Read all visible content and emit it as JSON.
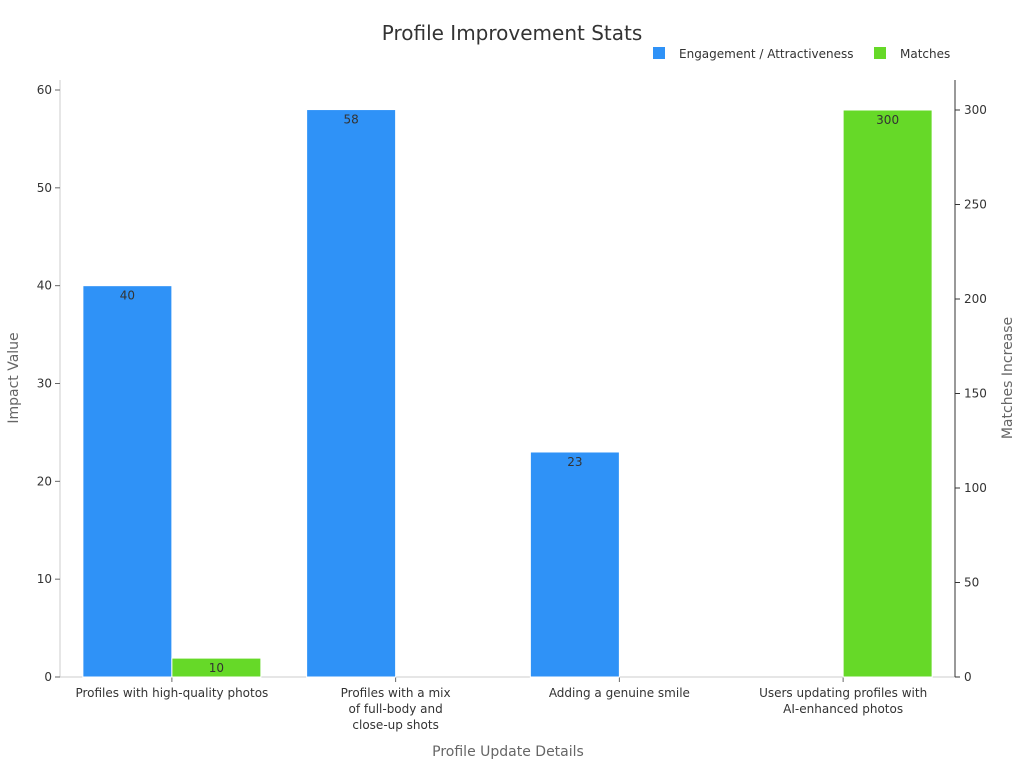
{
  "chart_data": {
    "type": "bar",
    "title": "Profile Improvement Stats",
    "xlabel": "Profile Update Details",
    "ylabel": "Impact Value",
    "y2label": "Matches Increase",
    "categories": [
      [
        "Profiles with high-quality photos"
      ],
      [
        "Profiles with a mix",
        "of full-body and",
        "close-up shots"
      ],
      [
        "Adding a genuine smile"
      ],
      [
        "Users updating profiles with",
        "AI-enhanced photos"
      ]
    ],
    "series": [
      {
        "name": "Engagement / Attractiveness",
        "axis": "left",
        "color": "#2f92f7",
        "values": [
          40,
          58,
          23,
          null
        ]
      },
      {
        "name": "Matches",
        "axis": "right",
        "color": "#66d928",
        "values": [
          10,
          null,
          null,
          300
        ]
      }
    ],
    "ylim": [
      0,
      60
    ],
    "yticks": [
      0,
      10,
      20,
      30,
      40,
      50,
      60
    ],
    "y2lim": [
      0,
      300
    ],
    "y2ticks": [
      0,
      50,
      100,
      150,
      200,
      250,
      300
    ],
    "grid": false,
    "legend": "top-right"
  }
}
